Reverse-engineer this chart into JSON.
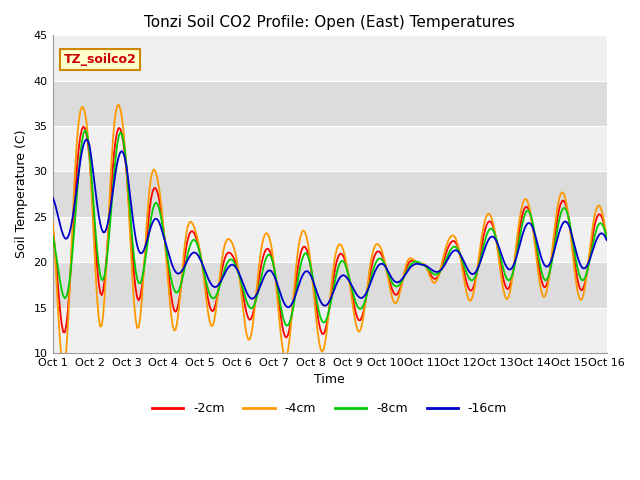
{
  "title": "Tonzi Soil CO2 Profile: Open (East) Temperatures",
  "xlabel": "Time",
  "ylabel": "Soil Temperature (C)",
  "ylim": [
    10,
    45
  ],
  "xlim": [
    0,
    15
  ],
  "xtick_labels": [
    "Oct 1",
    "Oct 2",
    "Oct 3",
    "Oct 4",
    "Oct 5",
    "Oct 6",
    "Oct 7",
    "Oct 8",
    "Oct 9",
    "Oct 10",
    "Oct 11",
    "Oct 12",
    "Oct 13",
    "Oct 14",
    "Oct 15",
    "Oct 16"
  ],
  "watermark_text": "TZ_soilco2",
  "colors": {
    "m2cm": "#ff0000",
    "m4cm": "#ff9900",
    "m8cm": "#00cc00",
    "m16cm": "#0000cc"
  },
  "legend": [
    "-2cm",
    "-4cm",
    "-8cm",
    "-16cm"
  ],
  "bg_band_colors": [
    "#f0f0f0",
    "#dcdcdc"
  ],
  "grid_line_color": "#c8c8c8",
  "title_fontsize": 11,
  "tick_fontsize": 8,
  "label_fontsize": 9
}
